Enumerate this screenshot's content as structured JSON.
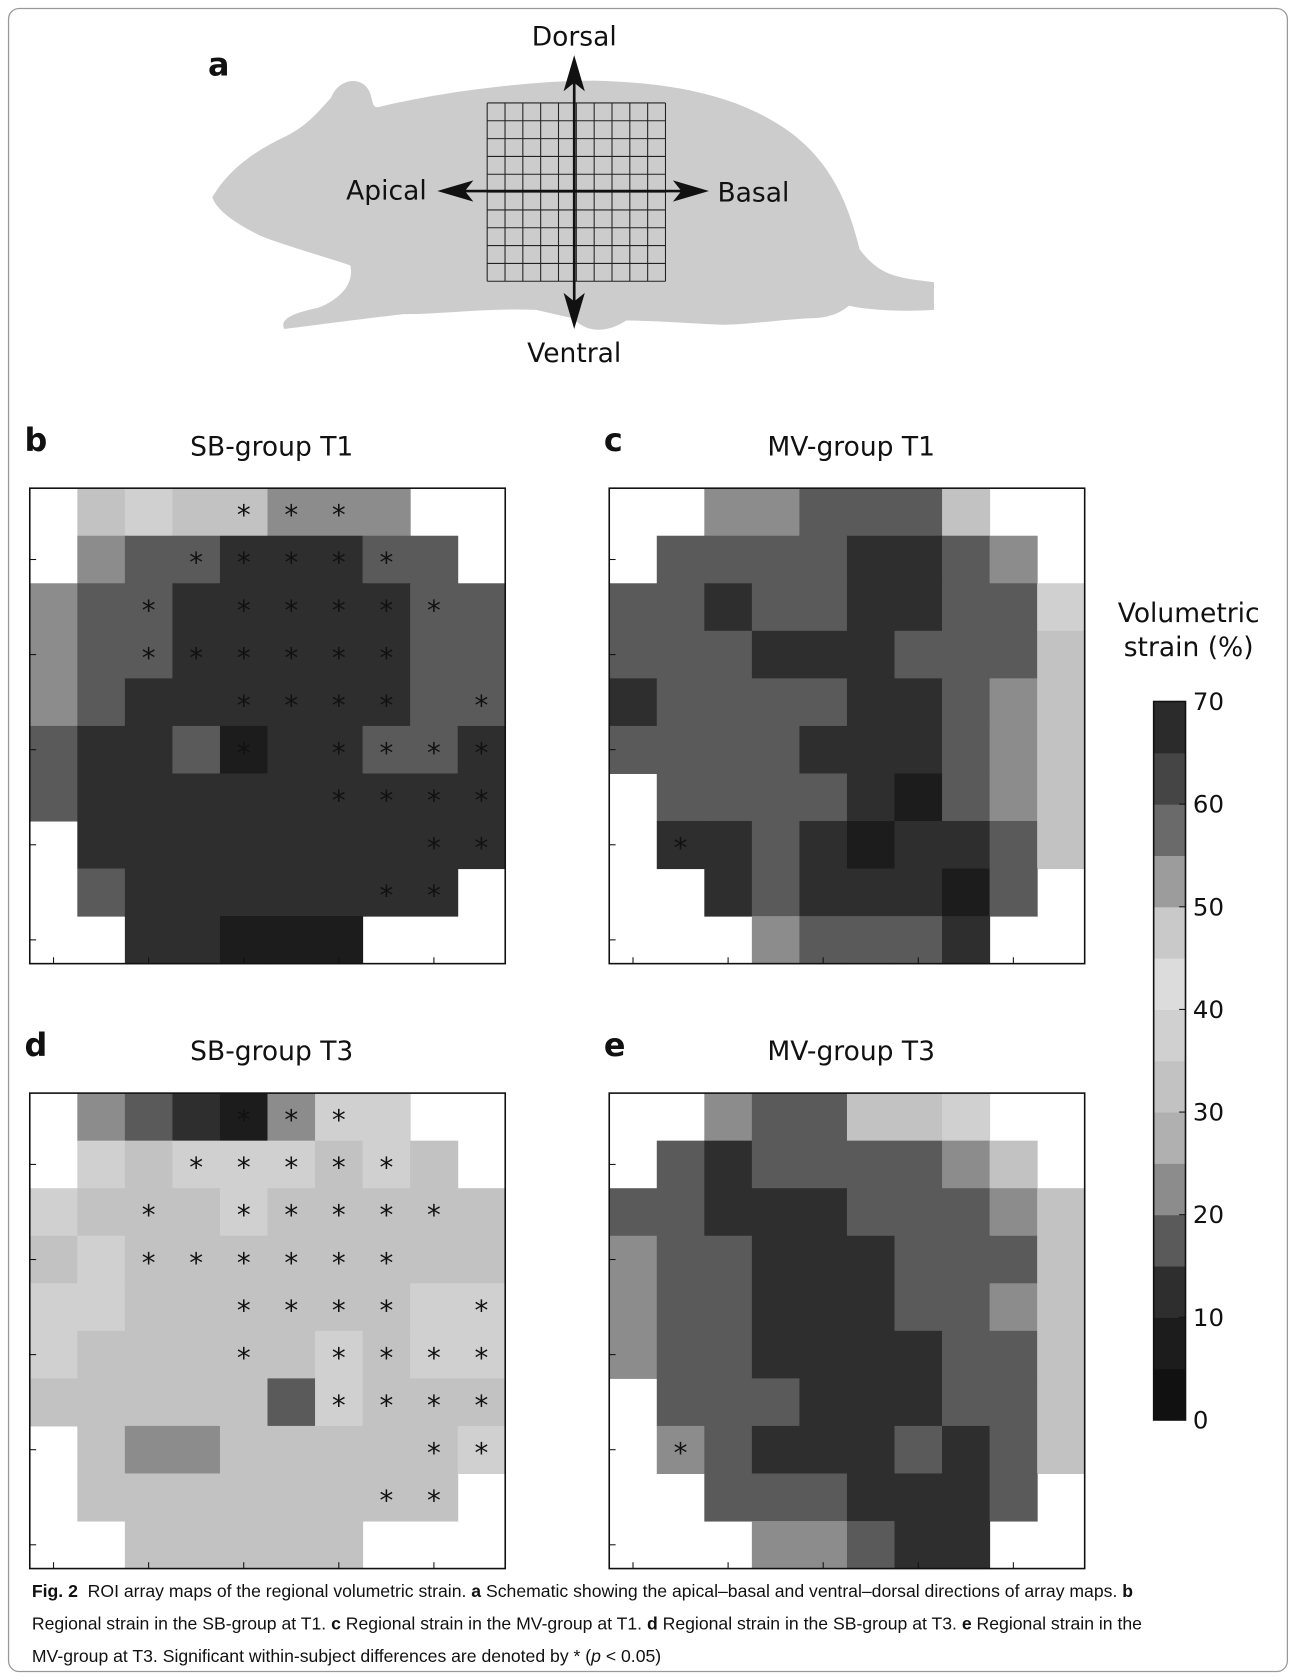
{
  "panel_a": {
    "letter": "a",
    "dorsal": "Dorsal",
    "ventral": "Ventral",
    "apical": "Apical",
    "basal": "Basal"
  },
  "colorbar": {
    "title_lines": [
      "Volumetric",
      "strain (%)"
    ],
    "zlim": [
      0,
      70
    ],
    "ticks": [
      0,
      10,
      20,
      30,
      40,
      50,
      60,
      70
    ],
    "colors": [
      "#111111",
      "#1c1c1c",
      "#2e2e2e",
      "#5a5a5a",
      "#8c8c8c",
      "#b0b0b0",
      "#c2c2c2",
      "#d0d0d0",
      "#dcdcdc",
      "#c9c9c9",
      "#9c9c9c",
      "#6a6a6a",
      "#454545",
      "#2b2b2b"
    ]
  },
  "chart_data": [
    {
      "type": "heatmap",
      "panel": "b",
      "title": "SB-group T1",
      "values": [
        [
          null,
          32,
          37,
          32,
          32,
          22,
          22,
          22,
          null,
          null
        ],
        [
          null,
          22,
          17,
          17,
          12,
          12,
          12,
          17,
          17,
          null
        ],
        [
          22,
          17,
          17,
          12,
          12,
          12,
          12,
          12,
          17,
          17
        ],
        [
          22,
          17,
          17,
          12,
          12,
          12,
          12,
          12,
          17,
          17
        ],
        [
          22,
          17,
          12,
          12,
          12,
          12,
          12,
          12,
          17,
          17
        ],
        [
          17,
          12,
          12,
          17,
          7,
          12,
          12,
          17,
          17,
          12
        ],
        [
          17,
          12,
          12,
          12,
          12,
          12,
          12,
          12,
          12,
          12
        ],
        [
          null,
          12,
          12,
          12,
          12,
          12,
          12,
          12,
          12,
          12
        ],
        [
          null,
          17,
          12,
          12,
          12,
          12,
          12,
          12,
          12,
          null
        ],
        [
          null,
          null,
          12,
          12,
          7,
          7,
          7,
          null,
          null,
          null
        ]
      ],
      "annotations": [
        [
          null,
          null,
          null,
          null,
          "*",
          "*",
          "*",
          null,
          null,
          null
        ],
        [
          null,
          null,
          null,
          "*",
          "*",
          "*",
          "*",
          "*",
          null,
          null
        ],
        [
          null,
          null,
          "*",
          null,
          "*",
          "*",
          "*",
          "*",
          "*",
          null
        ],
        [
          null,
          null,
          "*",
          "*",
          "*",
          "*",
          "*",
          "*",
          null,
          null
        ],
        [
          null,
          null,
          null,
          null,
          "*",
          "*",
          "*",
          "*",
          null,
          "*"
        ],
        [
          null,
          null,
          null,
          null,
          "*",
          null,
          "*",
          "*",
          "*",
          "*"
        ],
        [
          null,
          null,
          null,
          null,
          null,
          null,
          "*",
          "*",
          "*",
          "*"
        ],
        [
          null,
          null,
          null,
          null,
          null,
          null,
          null,
          null,
          "*",
          "*"
        ],
        [
          null,
          null,
          null,
          null,
          null,
          null,
          null,
          "*",
          "*",
          null
        ],
        [
          null,
          null,
          null,
          null,
          null,
          null,
          null,
          null,
          null,
          null
        ]
      ]
    },
    {
      "type": "heatmap",
      "panel": "c",
      "title": "MV-group T1",
      "values": [
        [
          null,
          null,
          22,
          22,
          17,
          17,
          17,
          32,
          null,
          null
        ],
        [
          null,
          17,
          17,
          17,
          17,
          12,
          12,
          17,
          22,
          null
        ],
        [
          17,
          17,
          12,
          17,
          17,
          12,
          12,
          17,
          17,
          37
        ],
        [
          17,
          17,
          17,
          12,
          12,
          12,
          17,
          17,
          17,
          32
        ],
        [
          12,
          17,
          17,
          17,
          17,
          12,
          12,
          17,
          22,
          32
        ],
        [
          17,
          17,
          17,
          17,
          12,
          12,
          12,
          17,
          22,
          32
        ],
        [
          null,
          17,
          17,
          17,
          17,
          12,
          7,
          17,
          22,
          32
        ],
        [
          null,
          12,
          12,
          17,
          12,
          7,
          12,
          12,
          17,
          32
        ],
        [
          null,
          null,
          12,
          17,
          12,
          12,
          12,
          7,
          17,
          null
        ],
        [
          null,
          null,
          null,
          22,
          17,
          17,
          17,
          12,
          null,
          null
        ]
      ],
      "annotations": [
        [
          null,
          null,
          null,
          null,
          null,
          null,
          null,
          null,
          null,
          null
        ],
        [
          null,
          null,
          null,
          null,
          null,
          null,
          null,
          null,
          null,
          null
        ],
        [
          null,
          null,
          null,
          null,
          null,
          null,
          null,
          null,
          null,
          null
        ],
        [
          null,
          null,
          null,
          null,
          null,
          null,
          null,
          null,
          null,
          null
        ],
        [
          null,
          null,
          null,
          null,
          null,
          null,
          null,
          null,
          null,
          null
        ],
        [
          null,
          null,
          null,
          null,
          null,
          null,
          null,
          null,
          null,
          null
        ],
        [
          null,
          null,
          null,
          null,
          null,
          null,
          null,
          null,
          null,
          null
        ],
        [
          null,
          "*",
          null,
          null,
          null,
          null,
          null,
          null,
          null,
          null
        ],
        [
          null,
          null,
          null,
          null,
          null,
          null,
          null,
          null,
          null,
          null
        ],
        [
          null,
          null,
          null,
          null,
          null,
          null,
          null,
          null,
          null,
          null
        ]
      ]
    },
    {
      "type": "heatmap",
      "panel": "d",
      "title": "SB-group T3",
      "values": [
        [
          null,
          22,
          17,
          12,
          7,
          22,
          37,
          37,
          null,
          null
        ],
        [
          null,
          37,
          32,
          37,
          37,
          37,
          32,
          37,
          32,
          null
        ],
        [
          37,
          32,
          32,
          32,
          37,
          32,
          32,
          32,
          32,
          32
        ],
        [
          32,
          37,
          32,
          32,
          32,
          32,
          32,
          32,
          32,
          32
        ],
        [
          37,
          37,
          32,
          32,
          32,
          32,
          32,
          32,
          37,
          37
        ],
        [
          37,
          32,
          32,
          32,
          32,
          32,
          37,
          32,
          37,
          37
        ],
        [
          32,
          32,
          32,
          32,
          32,
          17,
          37,
          32,
          32,
          32
        ],
        [
          null,
          32,
          22,
          22,
          32,
          32,
          32,
          32,
          32,
          37
        ],
        [
          null,
          32,
          32,
          32,
          32,
          32,
          32,
          32,
          32,
          null
        ],
        [
          null,
          null,
          32,
          32,
          32,
          32,
          32,
          null,
          null,
          null
        ]
      ],
      "annotations": [
        [
          null,
          null,
          null,
          null,
          "*",
          "*",
          "*",
          null,
          null,
          null
        ],
        [
          null,
          null,
          null,
          "*",
          "*",
          "*",
          "*",
          "*",
          null,
          null
        ],
        [
          null,
          null,
          "*",
          null,
          "*",
          "*",
          "*",
          "*",
          "*",
          null
        ],
        [
          null,
          null,
          "*",
          "*",
          "*",
          "*",
          "*",
          "*",
          null,
          null
        ],
        [
          null,
          null,
          null,
          null,
          "*",
          "*",
          "*",
          "*",
          null,
          "*"
        ],
        [
          null,
          null,
          null,
          null,
          "*",
          null,
          "*",
          "*",
          "*",
          "*"
        ],
        [
          null,
          null,
          null,
          null,
          null,
          null,
          "*",
          "*",
          "*",
          "*"
        ],
        [
          null,
          null,
          null,
          null,
          null,
          null,
          null,
          null,
          "*",
          "*"
        ],
        [
          null,
          null,
          null,
          null,
          null,
          null,
          null,
          "*",
          "*",
          null
        ],
        [
          null,
          null,
          null,
          null,
          null,
          null,
          null,
          null,
          null,
          null
        ]
      ]
    },
    {
      "type": "heatmap",
      "panel": "e",
      "title": "MV-group T3",
      "values": [
        [
          null,
          null,
          22,
          17,
          17,
          32,
          32,
          37,
          null,
          null
        ],
        [
          null,
          17,
          12,
          17,
          17,
          17,
          17,
          22,
          32,
          null
        ],
        [
          17,
          17,
          12,
          12,
          12,
          17,
          17,
          17,
          22,
          32
        ],
        [
          22,
          17,
          17,
          12,
          12,
          12,
          17,
          17,
          17,
          32
        ],
        [
          22,
          17,
          17,
          12,
          12,
          12,
          17,
          17,
          22,
          32
        ],
        [
          22,
          17,
          17,
          12,
          12,
          12,
          12,
          17,
          17,
          32
        ],
        [
          null,
          17,
          17,
          17,
          12,
          12,
          12,
          17,
          17,
          32
        ],
        [
          null,
          22,
          17,
          12,
          12,
          12,
          17,
          12,
          17,
          32
        ],
        [
          null,
          null,
          17,
          17,
          17,
          12,
          12,
          12,
          17,
          null
        ],
        [
          null,
          null,
          null,
          22,
          22,
          17,
          12,
          12,
          null,
          null
        ]
      ],
      "annotations": [
        [
          null,
          null,
          null,
          null,
          null,
          null,
          null,
          null,
          null,
          null
        ],
        [
          null,
          null,
          null,
          null,
          null,
          null,
          null,
          null,
          null,
          null
        ],
        [
          null,
          null,
          null,
          null,
          null,
          null,
          null,
          null,
          null,
          null
        ],
        [
          null,
          null,
          null,
          null,
          null,
          null,
          null,
          null,
          null,
          null
        ],
        [
          null,
          null,
          null,
          null,
          null,
          null,
          null,
          null,
          null,
          null
        ],
        [
          null,
          null,
          null,
          null,
          null,
          null,
          null,
          null,
          null,
          null
        ],
        [
          null,
          null,
          null,
          null,
          null,
          null,
          null,
          null,
          null,
          null
        ],
        [
          null,
          "*",
          null,
          null,
          null,
          null,
          null,
          null,
          null,
          null
        ],
        [
          null,
          null,
          null,
          null,
          null,
          null,
          null,
          null,
          null,
          null
        ],
        [
          null,
          null,
          null,
          null,
          null,
          null,
          null,
          null,
          null,
          null
        ]
      ]
    }
  ],
  "caption": [
    [
      {
        "text": "Fig. 2",
        "bold": true
      },
      {
        "text": "  ROI array maps of the regional volumetric strain. "
      },
      {
        "text": "a",
        "bold": true
      },
      {
        "text": " Schematic showing the apical–basal and ventral–dorsal directions of array maps. "
      },
      {
        "text": "b",
        "bold": true
      }
    ],
    [
      {
        "text": "Regional strain in the SB-group at T1. "
      },
      {
        "text": "c",
        "bold": true
      },
      {
        "text": " Regional strain in the MV-group at T1. "
      },
      {
        "text": "d",
        "bold": true
      },
      {
        "text": " Regional strain in the SB-group at T3. "
      },
      {
        "text": "e",
        "bold": true
      },
      {
        "text": " Regional strain in the"
      }
    ],
    [
      {
        "text": "MV-group at T3. Significant within-subject differences are denoted by * ("
      },
      {
        "text": "p",
        "italic": true
      },
      {
        "text": " < 0.05)"
      }
    ]
  ]
}
